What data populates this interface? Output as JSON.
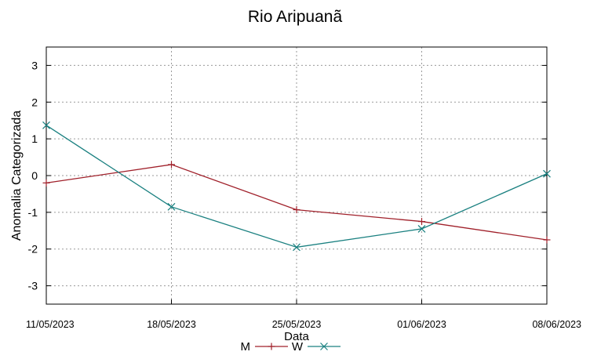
{
  "chart_data": {
    "type": "line",
    "title": "Rio Aripuanã",
    "xlabel": "Data",
    "ylabel": "Anomalia Categorizada",
    "categories": [
      "11/05/2023",
      "18/05/2023",
      "25/05/2023",
      "01/06/2023",
      "08/06/2023"
    ],
    "yticks": [
      3,
      2,
      1,
      0,
      -1,
      -2,
      -3
    ],
    "ylim": [
      -3.5,
      3.5
    ],
    "grid": true,
    "legend_position": "bottom-center",
    "series": [
      {
        "name": "M",
        "color": "#a0202a",
        "marker": "plus",
        "values": [
          -0.2,
          0.3,
          -0.93,
          -1.25,
          -1.75
        ]
      },
      {
        "name": "W",
        "color": "#1a8080",
        "marker": "cross",
        "values": [
          1.37,
          -0.85,
          -1.95,
          -1.45,
          0.05
        ]
      }
    ]
  }
}
